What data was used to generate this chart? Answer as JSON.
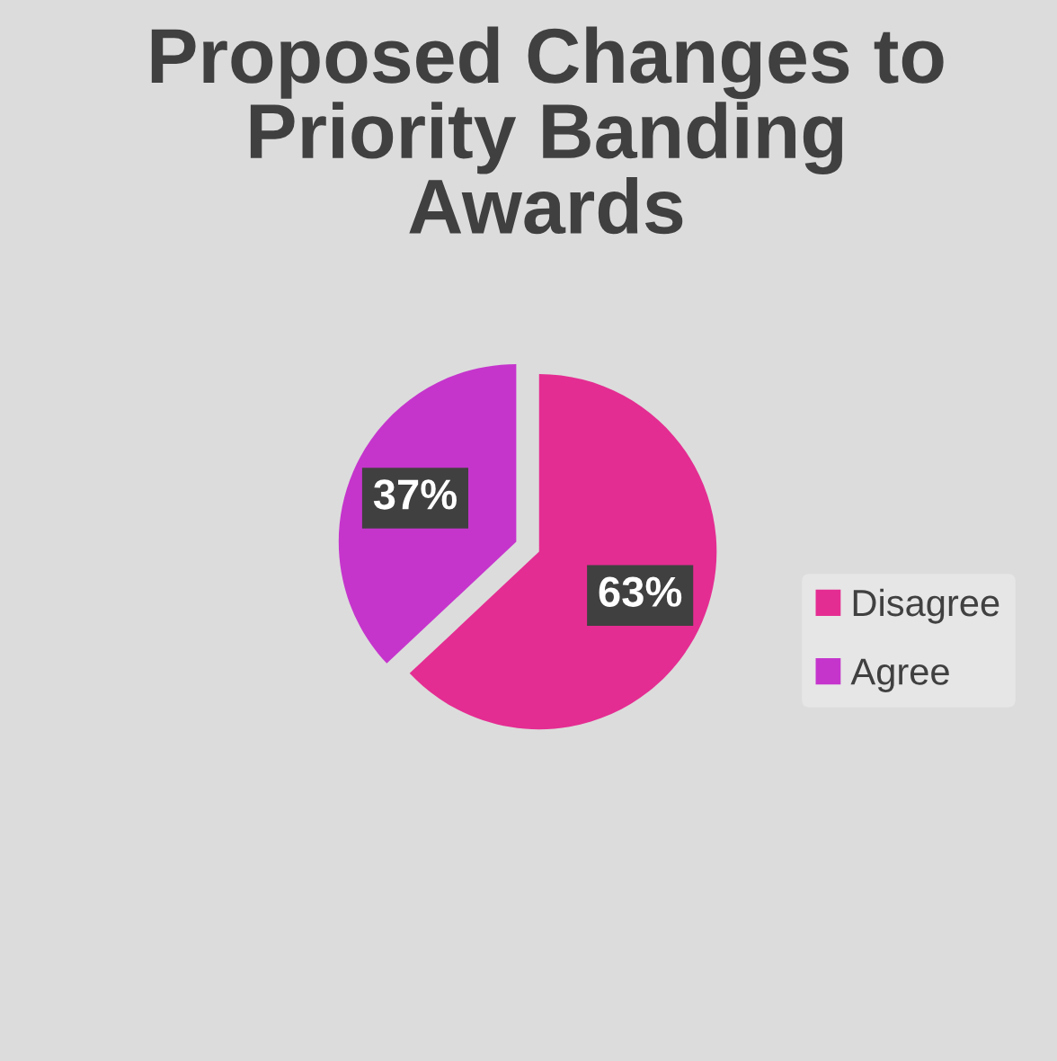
{
  "chart_data": {
    "type": "pie",
    "title": "Proposed Changes to Priority Banding Awards",
    "categories": [
      "Disagree",
      "Agree"
    ],
    "values": [
      63,
      37
    ],
    "value_labels": [
      "63%",
      "37%"
    ],
    "colors": [
      "#e42d92",
      "#c535cc"
    ],
    "legend": "right"
  }
}
